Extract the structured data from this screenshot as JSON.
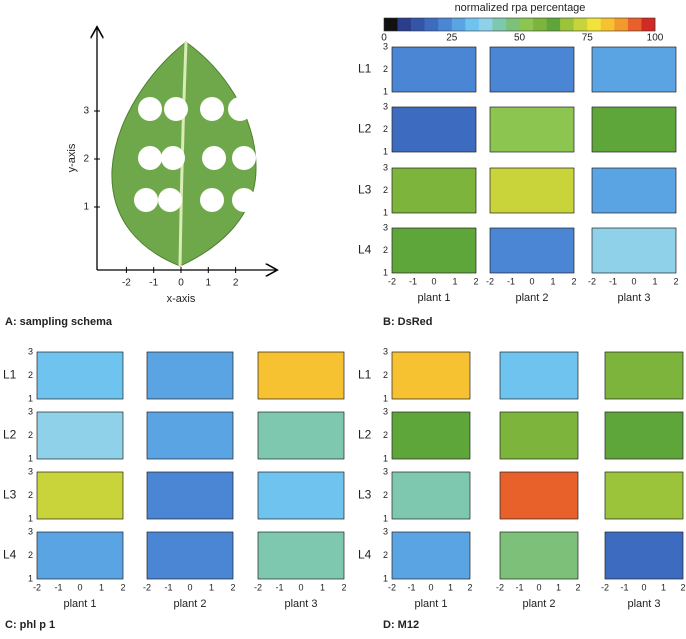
{
  "colorbar": {
    "title": "normalized rpa percentage",
    "ticks": [
      0,
      25,
      50,
      75,
      100
    ],
    "colors": [
      "#111111",
      "#2a3e8c",
      "#3355a8",
      "#3d6bc0",
      "#4a86d4",
      "#5aa4e4",
      "#6ec3ef",
      "#8fd1e8",
      "#7fc8b0",
      "#7cc07a",
      "#8cc54f",
      "#7db53c",
      "#5fa63a",
      "#9cc43a",
      "#c8d43a",
      "#f1e33a",
      "#f7c232",
      "#f29a2e",
      "#e8602a",
      "#d42a25"
    ]
  },
  "schema": {
    "caption": "A: sampling schema",
    "xlabel": "x-axis",
    "ylabel": "y-axis",
    "xticks": [
      -2,
      -1,
      0,
      1,
      2
    ],
    "yticks": [
      1,
      2,
      3
    ]
  },
  "mini_xticks": [
    -2,
    -1,
    0,
    1,
    2
  ],
  "mini_yticks": [
    1,
    2,
    3
  ],
  "rows": [
    "L1",
    "L2",
    "L3",
    "L4"
  ],
  "plants": [
    "plant 1",
    "plant 2",
    "plant 3"
  ],
  "panels": [
    {
      "caption": "B: DsRed",
      "levels": [
        [
          20,
          20,
          28
        ],
        [
          15,
          50,
          62
        ],
        [
          55,
          70,
          25
        ],
        [
          60,
          20,
          35
        ]
      ]
    },
    {
      "caption": "C: phl p 1",
      "levels": [
        [
          30,
          28,
          80
        ],
        [
          35,
          25,
          40
        ],
        [
          70,
          20,
          30
        ],
        [
          25,
          20,
          40
        ]
      ]
    },
    {
      "caption": "D: M12",
      "levels": [
        [
          80,
          30,
          55
        ],
        [
          60,
          55,
          60
        ],
        [
          40,
          90,
          65
        ],
        [
          25,
          45,
          18
        ]
      ]
    }
  ]
}
